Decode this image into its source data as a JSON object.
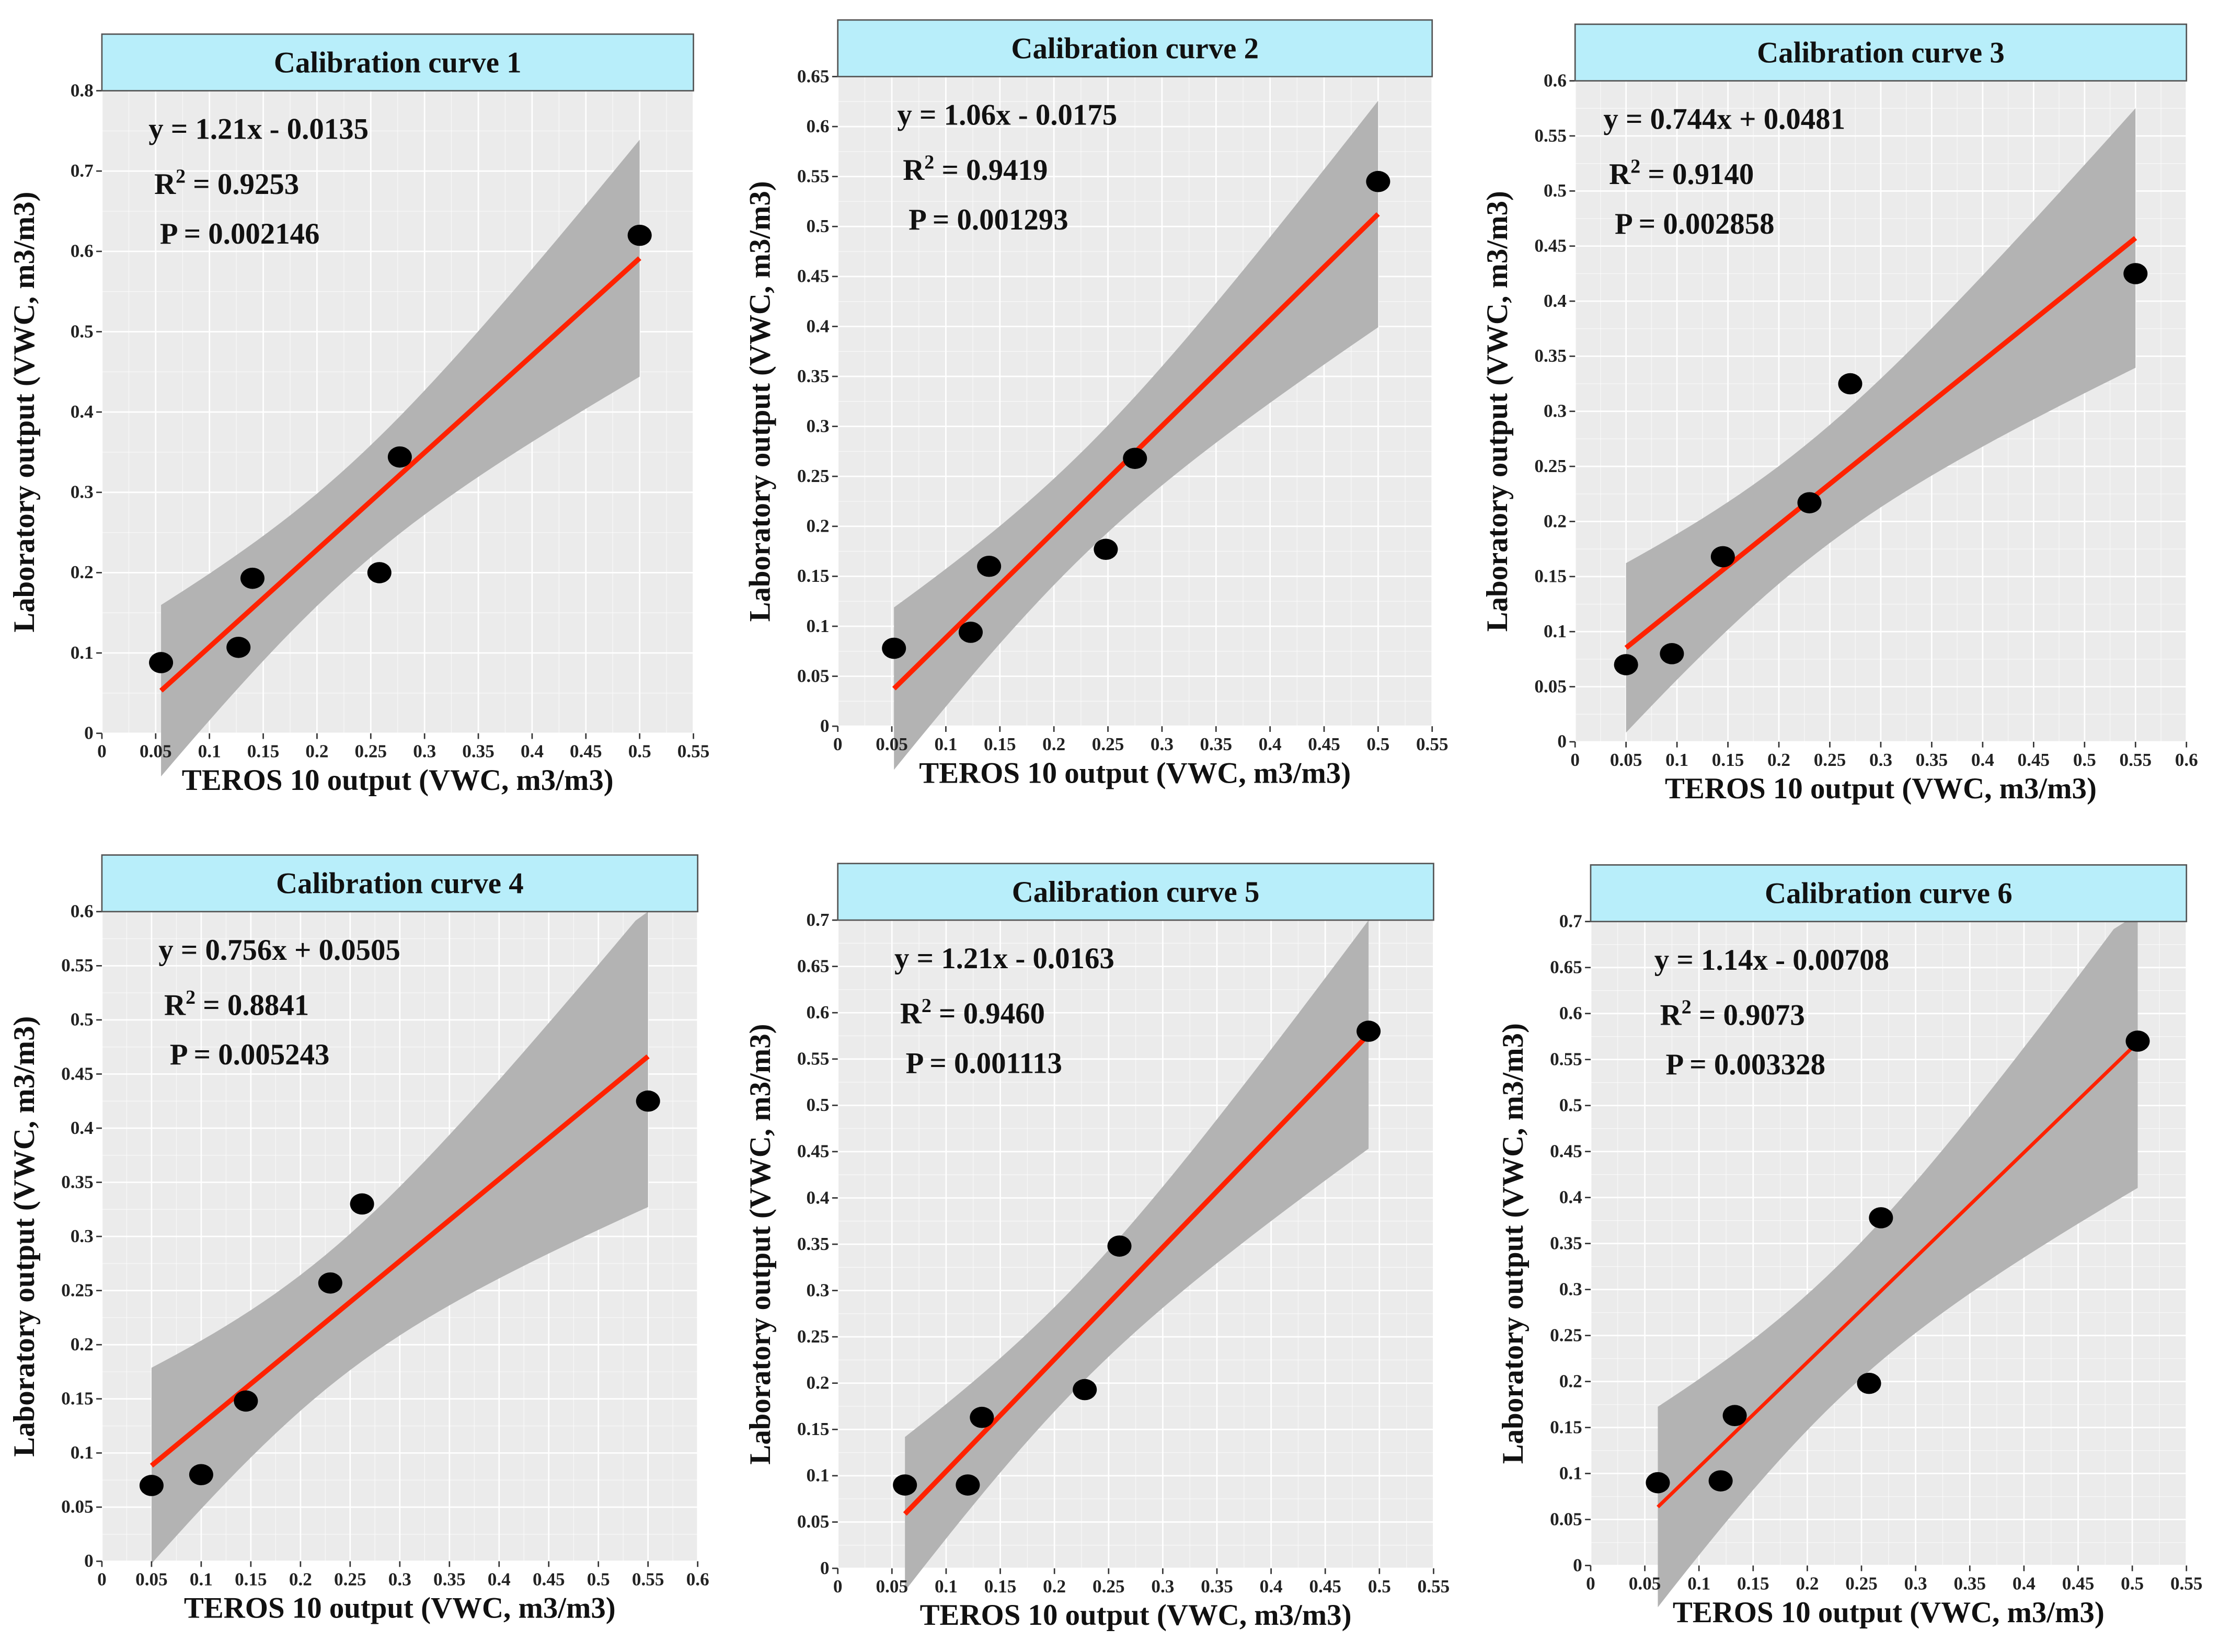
{
  "labels": {
    "r": "R",
    "sup": "2",
    "p": "P",
    "eq": " = "
  },
  "colors": {
    "panel_bg": "#ebebeb",
    "grid": "#ffffff",
    "strip": "#b8eefa",
    "strip_border": "#555555",
    "line": "#ff2200",
    "band": "#b3b3b3",
    "point": "#000000"
  },
  "chart_data": [
    {
      "type": "scatter",
      "title": "Calibration curve 1",
      "xlabel": "TEROS 10 output (VWC, m3/m3)",
      "ylabel": "Laboratory output (VWC, m3/m3)",
      "xlim": [
        0,
        0.55
      ],
      "ylim": [
        0,
        0.8
      ],
      "xticks": [
        "0",
        "0.05",
        "0.1",
        "0.15",
        "0.2",
        "0.25",
        "0.3",
        "0.35",
        "0.4",
        "0.45",
        "0.5",
        "0.55"
      ],
      "yticks": [
        "0",
        "0.1",
        "0.2",
        "0.3",
        "0.4",
        "0.5",
        "0.6",
        "0.7",
        "0.8"
      ],
      "equation": "y = 1.21x - 0.0135",
      "slope": 1.21,
      "intercept": -0.0135,
      "r2": "0.9253",
      "p": "0.002146",
      "points": [
        [
          0.055,
          0.088
        ],
        [
          0.127,
          0.107
        ],
        [
          0.14,
          0.193
        ],
        [
          0.258,
          0.2
        ],
        [
          0.277,
          0.344
        ],
        [
          0.5,
          0.62
        ]
      ]
    },
    {
      "type": "scatter",
      "title": "Calibration curve 2",
      "xlabel": "TEROS 10 output (VWC, m3/m3)",
      "ylabel": "Laboratory output (VWC, m3/m3)",
      "xlim": [
        0,
        0.55
      ],
      "ylim": [
        0,
        0.65
      ],
      "xticks": [
        "0",
        "0.05",
        "0.1",
        "0.15",
        "0.2",
        "0.25",
        "0.3",
        "0.35",
        "0.4",
        "0.45",
        "0.5",
        "0.55"
      ],
      "yticks": [
        "0",
        "0.05",
        "0.1",
        "0.15",
        "0.2",
        "0.25",
        "0.3",
        "0.35",
        "0.4",
        "0.45",
        "0.5",
        "0.55",
        "0.6",
        "0.65"
      ],
      "equation": "y = 1.06x - 0.0175",
      "slope": 1.06,
      "intercept": -0.0175,
      "r2": "0.9419",
      "p": "0.001293",
      "points": [
        [
          0.052,
          0.078
        ],
        [
          0.123,
          0.094
        ],
        [
          0.14,
          0.16
        ],
        [
          0.248,
          0.177
        ],
        [
          0.275,
          0.268
        ],
        [
          0.5,
          0.545
        ]
      ]
    },
    {
      "type": "scatter",
      "title": "Calibration curve 3",
      "xlabel": "TEROS 10 output (VWC, m3/m3)",
      "ylabel": "Laboratory output (VWC, m3/m3)",
      "xlim": [
        0,
        0.6
      ],
      "ylim": [
        0,
        0.6
      ],
      "xticks": [
        "0",
        "0.05",
        "0.1",
        "0.15",
        "0.2",
        "0.25",
        "0.3",
        "0.35",
        "0.4",
        "0.45",
        "0.5",
        "0.55",
        "0.6"
      ],
      "yticks": [
        "0",
        "0.05",
        "0.1",
        "0.15",
        "0.2",
        "0.25",
        "0.3",
        "0.35",
        "0.4",
        "0.45",
        "0.5",
        "0.55",
        "0.6"
      ],
      "equation": "y = 0.744x + 0.0481",
      "slope": 0.744,
      "intercept": 0.0481,
      "r2": "0.9140",
      "p": "0.002858",
      "points": [
        [
          0.05,
          0.07
        ],
        [
          0.095,
          0.08
        ],
        [
          0.145,
          0.168
        ],
        [
          0.23,
          0.217
        ],
        [
          0.27,
          0.325
        ],
        [
          0.55,
          0.425
        ]
      ]
    },
    {
      "type": "scatter",
      "title": "Calibration curve 4",
      "xlabel": "TEROS 10 output (VWC, m3/m3)",
      "ylabel": "Laboratory output (VWC, m3/m3)",
      "xlim": [
        0,
        0.6
      ],
      "ylim": [
        0,
        0.6
      ],
      "xticks": [
        "0",
        "0.05",
        "0.1",
        "0.15",
        "0.2",
        "0.25",
        "0.3",
        "0.35",
        "0.4",
        "0.45",
        "0.5",
        "0.55",
        "0.6"
      ],
      "yticks": [
        "0",
        "0.05",
        "0.1",
        "0.15",
        "0.2",
        "0.25",
        "0.3",
        "0.35",
        "0.4",
        "0.45",
        "0.5",
        "0.55",
        "0.6"
      ],
      "equation": "y = 0.756x + 0.0505",
      "slope": 0.756,
      "intercept": 0.0505,
      "r2": "0.8841",
      "p": "0.005243",
      "points": [
        [
          0.05,
          0.07
        ],
        [
          0.1,
          0.08
        ],
        [
          0.145,
          0.148
        ],
        [
          0.23,
          0.257
        ],
        [
          0.262,
          0.33
        ],
        [
          0.55,
          0.425
        ]
      ]
    },
    {
      "type": "scatter",
      "title": "Calibration curve 5",
      "xlabel": "TEROS 10 output (VWC, m3/m3)",
      "ylabel": "Laboratory output (VWC, m3/m3)",
      "xlim": [
        0,
        0.55
      ],
      "ylim": [
        0,
        0.7
      ],
      "xticks": [
        "0",
        "0.05",
        "0.1",
        "0.15",
        "0.2",
        "0.25",
        "0.3",
        "0.35",
        "0.4",
        "0.45",
        "0.5",
        "0.55"
      ],
      "yticks": [
        "0",
        "0.05",
        "0.1",
        "0.15",
        "0.2",
        "0.25",
        "0.3",
        "0.35",
        "0.4",
        "0.45",
        "0.5",
        "0.55",
        "0.6",
        "0.65",
        "0.7"
      ],
      "equation": "y = 1.21x - 0.0163",
      "slope": 1.21,
      "intercept": -0.0163,
      "r2": "0.9460",
      "p": "0.001113",
      "points": [
        [
          0.062,
          0.09
        ],
        [
          0.12,
          0.09
        ],
        [
          0.133,
          0.163
        ],
        [
          0.228,
          0.193
        ],
        [
          0.26,
          0.348
        ],
        [
          0.49,
          0.58
        ]
      ]
    },
    {
      "type": "scatter",
      "title": "Calibration curve 6",
      "xlabel": "TEROS 10 output (VWC, m3/m3)",
      "ylabel": "Laboratory output (VWC, m3/m3)",
      "xlim": [
        0,
        0.55
      ],
      "ylim": [
        0,
        0.7
      ],
      "xticks": [
        "0",
        "0.05",
        "0.1",
        "0.15",
        "0.2",
        "0.25",
        "0.3",
        "0.35",
        "0.4",
        "0.45",
        "0.5",
        "0.55"
      ],
      "yticks": [
        "0",
        "0.05",
        "0.1",
        "0.15",
        "0.2",
        "0.25",
        "0.3",
        "0.35",
        "0.4",
        "0.45",
        "0.5",
        "0.55",
        "0.6",
        "0.65",
        "0.7"
      ],
      "equation": "y = 1.14x - 0.00708",
      "slope": 1.14,
      "intercept": -0.00708,
      "r2": "0.9073",
      "p": "0.003328",
      "points": [
        [
          0.062,
          0.09
        ],
        [
          0.12,
          0.092
        ],
        [
          0.133,
          0.163
        ],
        [
          0.257,
          0.198
        ],
        [
          0.268,
          0.378
        ],
        [
          0.505,
          0.57
        ]
      ]
    }
  ]
}
